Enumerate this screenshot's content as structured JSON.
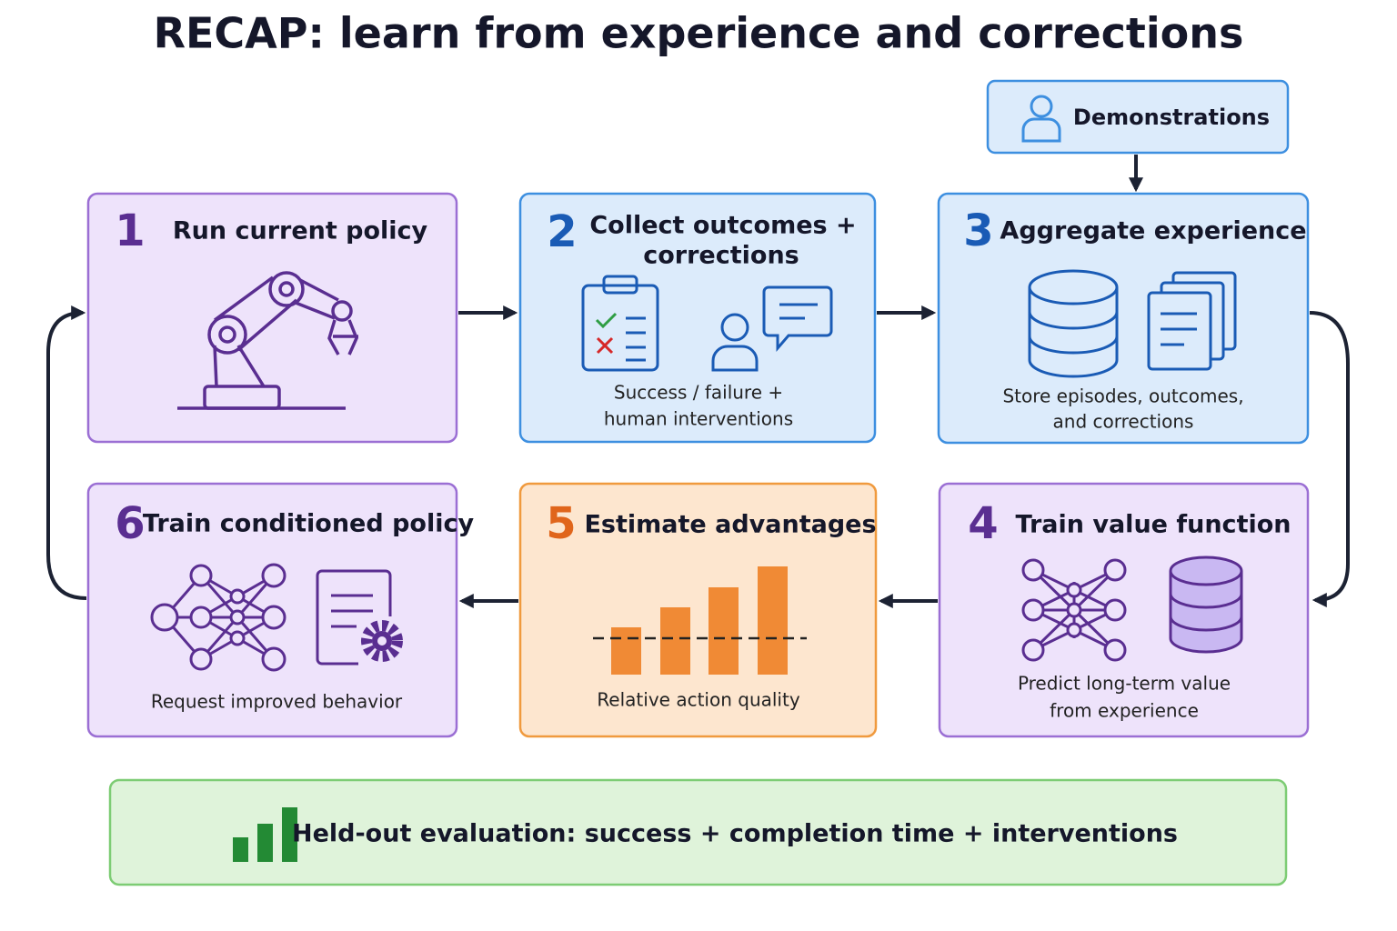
{
  "title": "RECAP: learn from experience and corrections",
  "demonstrations": "Demonstrations",
  "steps": [
    {
      "number": 1,
      "title": "Run current policy"
    },
    {
      "number": 2,
      "title": [
        "Collect outcomes +",
        "corrections"
      ],
      "caption": [
        "Success / failure +",
        "human interventions"
      ]
    },
    {
      "number": 3,
      "title": "Aggregate experience",
      "caption": [
        "Store episodes, outcomes,",
        "and corrections"
      ]
    },
    {
      "number": 4,
      "title": "Train value function",
      "caption": [
        "Predict long-term value",
        "from experience"
      ]
    },
    {
      "number": 5,
      "title": "Estimate advantages",
      "caption": [
        "Relative action quality"
      ]
    },
    {
      "number": 6,
      "title": "Train conditioned policy",
      "caption": [
        "Request improved behavior"
      ]
    }
  ],
  "evaluation": "Held-out evaluation: success + completion time + interventions"
}
